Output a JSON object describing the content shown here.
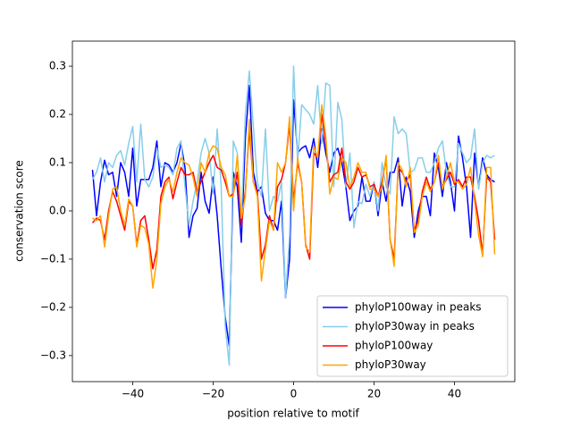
{
  "chart_data": {
    "type": "line",
    "xlabel": "position relative to motif",
    "ylabel": "conservation score",
    "x": [
      -50,
      -49,
      -48,
      -47,
      -46,
      -45,
      -44,
      -43,
      -42,
      -41,
      -40,
      -39,
      -38,
      -37,
      -36,
      -35,
      -34,
      -33,
      -32,
      -31,
      -30,
      -29,
      -28,
      -27,
      -26,
      -25,
      -24,
      -23,
      -22,
      -21,
      -20,
      -19,
      -18,
      -17,
      -16,
      -15,
      -14,
      -13,
      -12,
      -11,
      -10,
      -9,
      -8,
      -7,
      -6,
      -5,
      -4,
      -3,
      -2,
      -1,
      0,
      1,
      2,
      3,
      4,
      5,
      6,
      7,
      8,
      9,
      10,
      11,
      12,
      13,
      14,
      15,
      16,
      17,
      18,
      19,
      20,
      21,
      22,
      23,
      24,
      25,
      26,
      27,
      28,
      29,
      30,
      31,
      32,
      33,
      34,
      35,
      36,
      37,
      38,
      39,
      40,
      41,
      42,
      43,
      44,
      45,
      46,
      47,
      48,
      49,
      50
    ],
    "series": [
      {
        "name": "phyloP100way in peaks",
        "color": "#0000ff",
        "values": [
          0.085,
          -0.01,
          0.06,
          0.105,
          0.075,
          0.08,
          0.03,
          0.1,
          0.08,
          0.03,
          0.13,
          0.01,
          0.065,
          0.065,
          0.065,
          0.09,
          0.145,
          0.05,
          0.1,
          0.095,
          0.08,
          0.1,
          0.14,
          0.09,
          -0.055,
          -0.01,
          0.005,
          0.08,
          0.02,
          -0.005,
          0.07,
          -0.01,
          -0.12,
          -0.22,
          -0.28,
          0.08,
          0.05,
          -0.065,
          0.15,
          0.26,
          0.08,
          0.04,
          0.05,
          -0.005,
          -0.02,
          -0.02,
          -0.04,
          0.02,
          -0.18,
          -0.1,
          0.23,
          0.12,
          0.13,
          0.135,
          0.11,
          0.15,
          0.09,
          0.17,
          0.12,
          0.08,
          0.12,
          0.13,
          0.1,
          0.05,
          -0.02,
          0.0,
          0.01,
          0.07,
          0.02,
          0.02,
          0.06,
          -0.01,
          0.06,
          0.02,
          0.08,
          0.08,
          0.11,
          0.01,
          0.07,
          0.04,
          -0.055,
          0.0,
          0.03,
          0.03,
          -0.01,
          0.12,
          0.09,
          0.03,
          0.1,
          0.06,
          0.0,
          0.155,
          0.11,
          0.05,
          -0.055,
          0.12,
          0.05,
          0.11,
          0.075,
          0.065,
          0.06
        ]
      },
      {
        "name": "phyloP30way in peaks",
        "color": "#87ceeb",
        "values": [
          0.065,
          0.08,
          0.11,
          0.06,
          0.1,
          0.09,
          0.115,
          0.125,
          0.095,
          0.14,
          0.175,
          0.06,
          0.18,
          0.065,
          0.05,
          0.07,
          0.13,
          0.09,
          0.095,
          0.09,
          0.075,
          0.13,
          0.145,
          0.05,
          -0.03,
          0.02,
          0.06,
          0.12,
          0.15,
          0.12,
          0.035,
          0.17,
          0.05,
          -0.24,
          -0.32,
          0.145,
          0.12,
          -0.02,
          0.2,
          0.29,
          0.175,
          0.06,
          0.03,
          0.17,
          0.0,
          0.03,
          0.02,
          0.06,
          -0.18,
          -0.05,
          0.3,
          0.1,
          0.22,
          0.21,
          0.2,
          0.18,
          0.26,
          0.14,
          0.265,
          0.26,
          0.05,
          0.225,
          0.19,
          0.05,
          0.12,
          -0.035,
          0.02,
          0.015,
          0.055,
          0.03,
          0.06,
          0.0,
          0.1,
          0.05,
          0.035,
          0.195,
          0.16,
          0.17,
          0.16,
          0.08,
          0.085,
          0.11,
          0.11,
          0.08,
          0.08,
          0.1,
          0.13,
          0.145,
          0.08,
          0.05,
          0.05,
          0.14,
          0.12,
          0.1,
          0.11,
          0.17,
          0.045,
          0.1,
          0.115,
          0.11,
          0.115
        ]
      },
      {
        "name": "phyloP100way",
        "color": "#ff0000",
        "values": [
          -0.025,
          -0.015,
          -0.02,
          -0.06,
          0.0,
          0.04,
          0.02,
          -0.01,
          -0.04,
          0.02,
          0.01,
          -0.07,
          -0.02,
          -0.01,
          -0.06,
          -0.12,
          -0.08,
          0.03,
          0.06,
          0.07,
          0.025,
          0.06,
          0.09,
          0.075,
          0.075,
          0.08,
          0.04,
          0.06,
          0.08,
          0.1,
          0.115,
          0.09,
          0.085,
          0.06,
          0.03,
          0.035,
          0.08,
          -0.03,
          0.04,
          0.17,
          0.06,
          0.04,
          -0.1,
          -0.07,
          -0.01,
          -0.04,
          0.05,
          0.065,
          0.1,
          0.18,
          0.02,
          0.1,
          0.06,
          -0.07,
          -0.1,
          0.12,
          0.11,
          0.2,
          0.14,
          0.06,
          0.075,
          0.08,
          0.13,
          0.06,
          0.045,
          0.06,
          0.09,
          0.07,
          0.075,
          0.05,
          0.055,
          0.03,
          0.06,
          0.11,
          -0.06,
          -0.1,
          0.09,
          0.08,
          0.06,
          0.075,
          -0.04,
          -0.02,
          0.04,
          0.07,
          0.045,
          0.06,
          0.1,
          0.05,
          0.065,
          0.08,
          0.055,
          0.065,
          0.05,
          0.07,
          0.07,
          0.03,
          -0.02,
          -0.09,
          0.07,
          0.06,
          -0.06
        ]
      },
      {
        "name": "phyloP30way",
        "color": "#ffa500",
        "values": [
          -0.015,
          -0.02,
          -0.01,
          -0.075,
          -0.01,
          0.045,
          0.05,
          0.0,
          -0.03,
          0.025,
          0.01,
          -0.075,
          -0.03,
          -0.035,
          -0.07,
          -0.16,
          -0.1,
          0.015,
          0.05,
          0.065,
          0.04,
          0.08,
          0.11,
          0.1,
          0.095,
          0.07,
          0.03,
          0.1,
          0.08,
          0.12,
          0.135,
          0.13,
          0.09,
          0.075,
          0.03,
          0.03,
          0.115,
          -0.015,
          0.03,
          0.19,
          0.06,
          0.03,
          -0.145,
          -0.08,
          -0.02,
          -0.04,
          0.1,
          0.08,
          0.1,
          0.195,
          0.0,
          0.11,
          0.06,
          -0.075,
          -0.085,
          0.135,
          0.11,
          0.22,
          0.155,
          0.035,
          0.07,
          0.065,
          0.11,
          0.1,
          0.05,
          0.07,
          0.1,
          0.08,
          0.08,
          0.045,
          0.045,
          0.03,
          0.05,
          0.115,
          -0.06,
          -0.115,
          0.1,
          0.085,
          0.05,
          0.09,
          -0.045,
          -0.03,
          0.03,
          0.06,
          0.04,
          0.06,
          0.115,
          0.045,
          0.07,
          0.1,
          0.06,
          0.06,
          0.045,
          0.055,
          0.09,
          0.02,
          -0.05,
          -0.095,
          0.09,
          0.09,
          -0.09
        ]
      }
    ],
    "xlim": [
      -55,
      55
    ],
    "ylim": [
      -0.354,
      0.352
    ],
    "xticks": [
      {
        "value": -40,
        "label": "−40"
      },
      {
        "value": -20,
        "label": "−20"
      },
      0,
      20,
      40
    ],
    "yticks": [
      {
        "value": -0.3,
        "label": "−0.3"
      },
      {
        "value": -0.2,
        "label": "−0.2"
      },
      {
        "value": -0.1,
        "label": "−0.1"
      },
      {
        "value": 0,
        "label": "0.0"
      },
      0.1,
      0.2,
      0.3
    ],
    "legend": "lower right"
  }
}
